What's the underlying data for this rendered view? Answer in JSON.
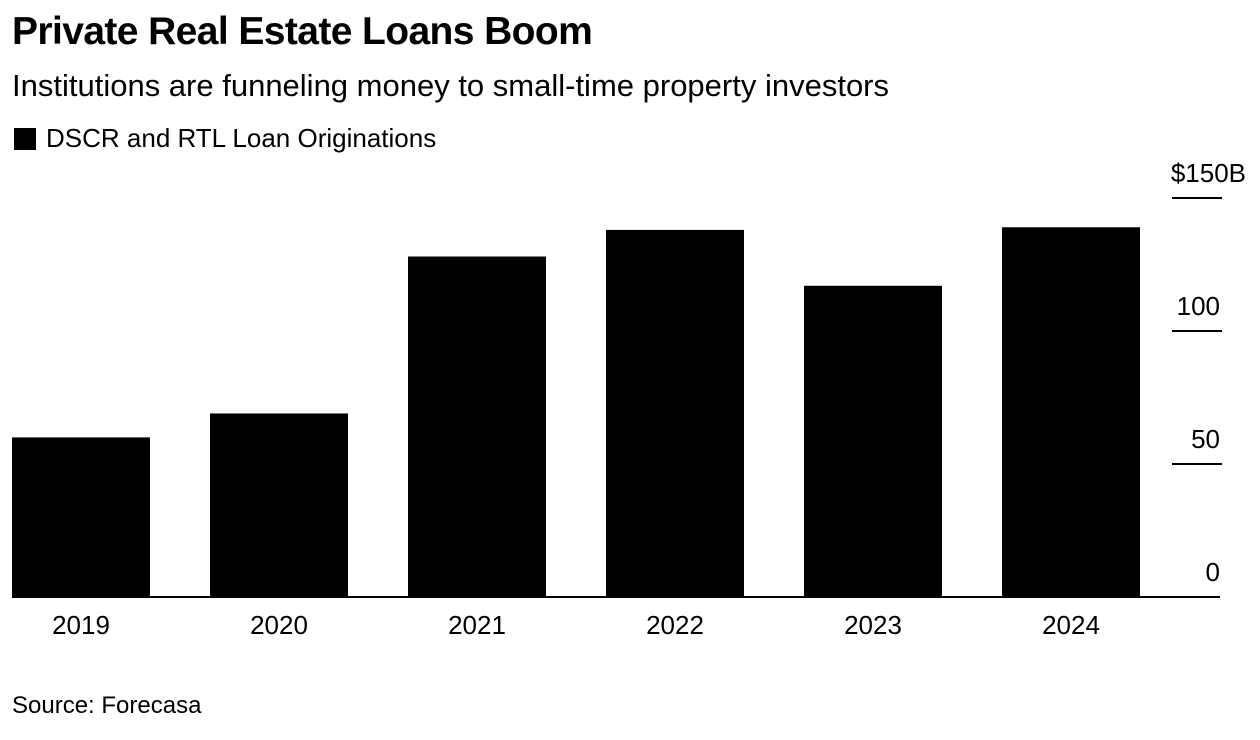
{
  "header": {
    "title": "Private Real Estate Loans Boom",
    "subtitle": "Institutions are funneling money to small-time property investors"
  },
  "legend": {
    "label": "DSCR and RTL Loan Originations",
    "color": "#000000"
  },
  "footer": {
    "source": "Source: Forecasa"
  },
  "chart_data": {
    "type": "bar",
    "categories": [
      "2019",
      "2020",
      "2021",
      "2022",
      "2023",
      "2024"
    ],
    "series": [
      {
        "name": "DSCR and RTL Loan Originations",
        "values": [
          60,
          69,
          128,
          138,
          117,
          139
        ],
        "color": "#000000"
      }
    ],
    "ylim": [
      0,
      150
    ],
    "yticks": [
      0,
      50,
      100,
      150
    ],
    "ytick_labels": [
      "0",
      "50",
      "100",
      "$150B"
    ],
    "y_axis_side": "right",
    "grid": false,
    "legend_position": "top-left",
    "xlabel": "",
    "ylabel": ""
  }
}
